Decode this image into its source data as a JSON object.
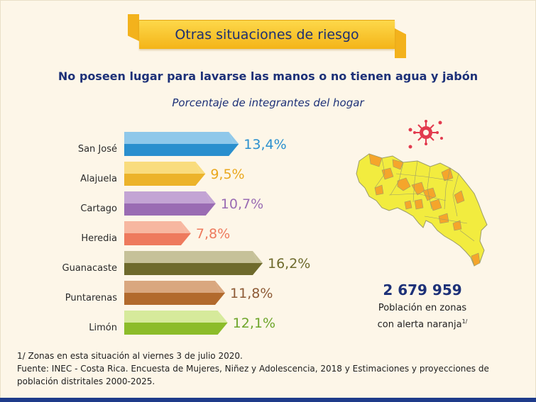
{
  "header": {
    "banner_title": "Otras situaciones de riesgo",
    "subtitle": "No poseen lugar para lavarse las manos o no tienen agua y jabón",
    "units_note": "Porcentaje de integrantes del hogar"
  },
  "chart_data": {
    "type": "bar",
    "orientation": "horizontal",
    "categories": [
      "San José",
      "Alajuela",
      "Cartago",
      "Heredia",
      "Guanacaste",
      "Puntarenas",
      "Limón"
    ],
    "values": [
      13.4,
      9.5,
      10.7,
      7.8,
      16.2,
      11.8,
      12.1
    ],
    "value_labels": [
      "13,4%",
      "9,5%",
      "10,7%",
      "7,8%",
      "16,2%",
      "11,8%",
      "12,1%"
    ],
    "colors": {
      "light": [
        "#8fc8ea",
        "#f9dc7e",
        "#c3a4d4",
        "#f7b7a0",
        "#c6c199",
        "#d9a77f",
        "#d6ea9b"
      ],
      "dark": [
        "#2a8fce",
        "#ecb32a",
        "#9a6cb3",
        "#ee7a5d",
        "#6e6a2c",
        "#b26a2d",
        "#8cbc2a"
      ],
      "label": [
        "#2a8fce",
        "#eaa81f",
        "#9a6cb3",
        "#ee7a5d",
        "#6e6a2c",
        "#8d5a35",
        "#6ea52b"
      ]
    }
  },
  "map_panel": {
    "icon": "virus-icon",
    "colors": {
      "base": "#f2ec3f",
      "alert": "#f5a52b",
      "border": "#9b9b6a",
      "virus": "#e23a4e"
    }
  },
  "stat": {
    "value": "2 679 959",
    "label_line1": "Población en zonas",
    "label_line2": "con alerta naranja",
    "footnote_marker": "1/"
  },
  "footnotes": {
    "note1": "1/ Zonas en esta situación al viernes 3 de julio 2020.",
    "source": "Fuente: INEC - Costa Rica. Encuesta de Mujeres, Niñez y Adolescencia, 2018 y Estimaciones y proyecciones de población distritales 2000-2025."
  }
}
